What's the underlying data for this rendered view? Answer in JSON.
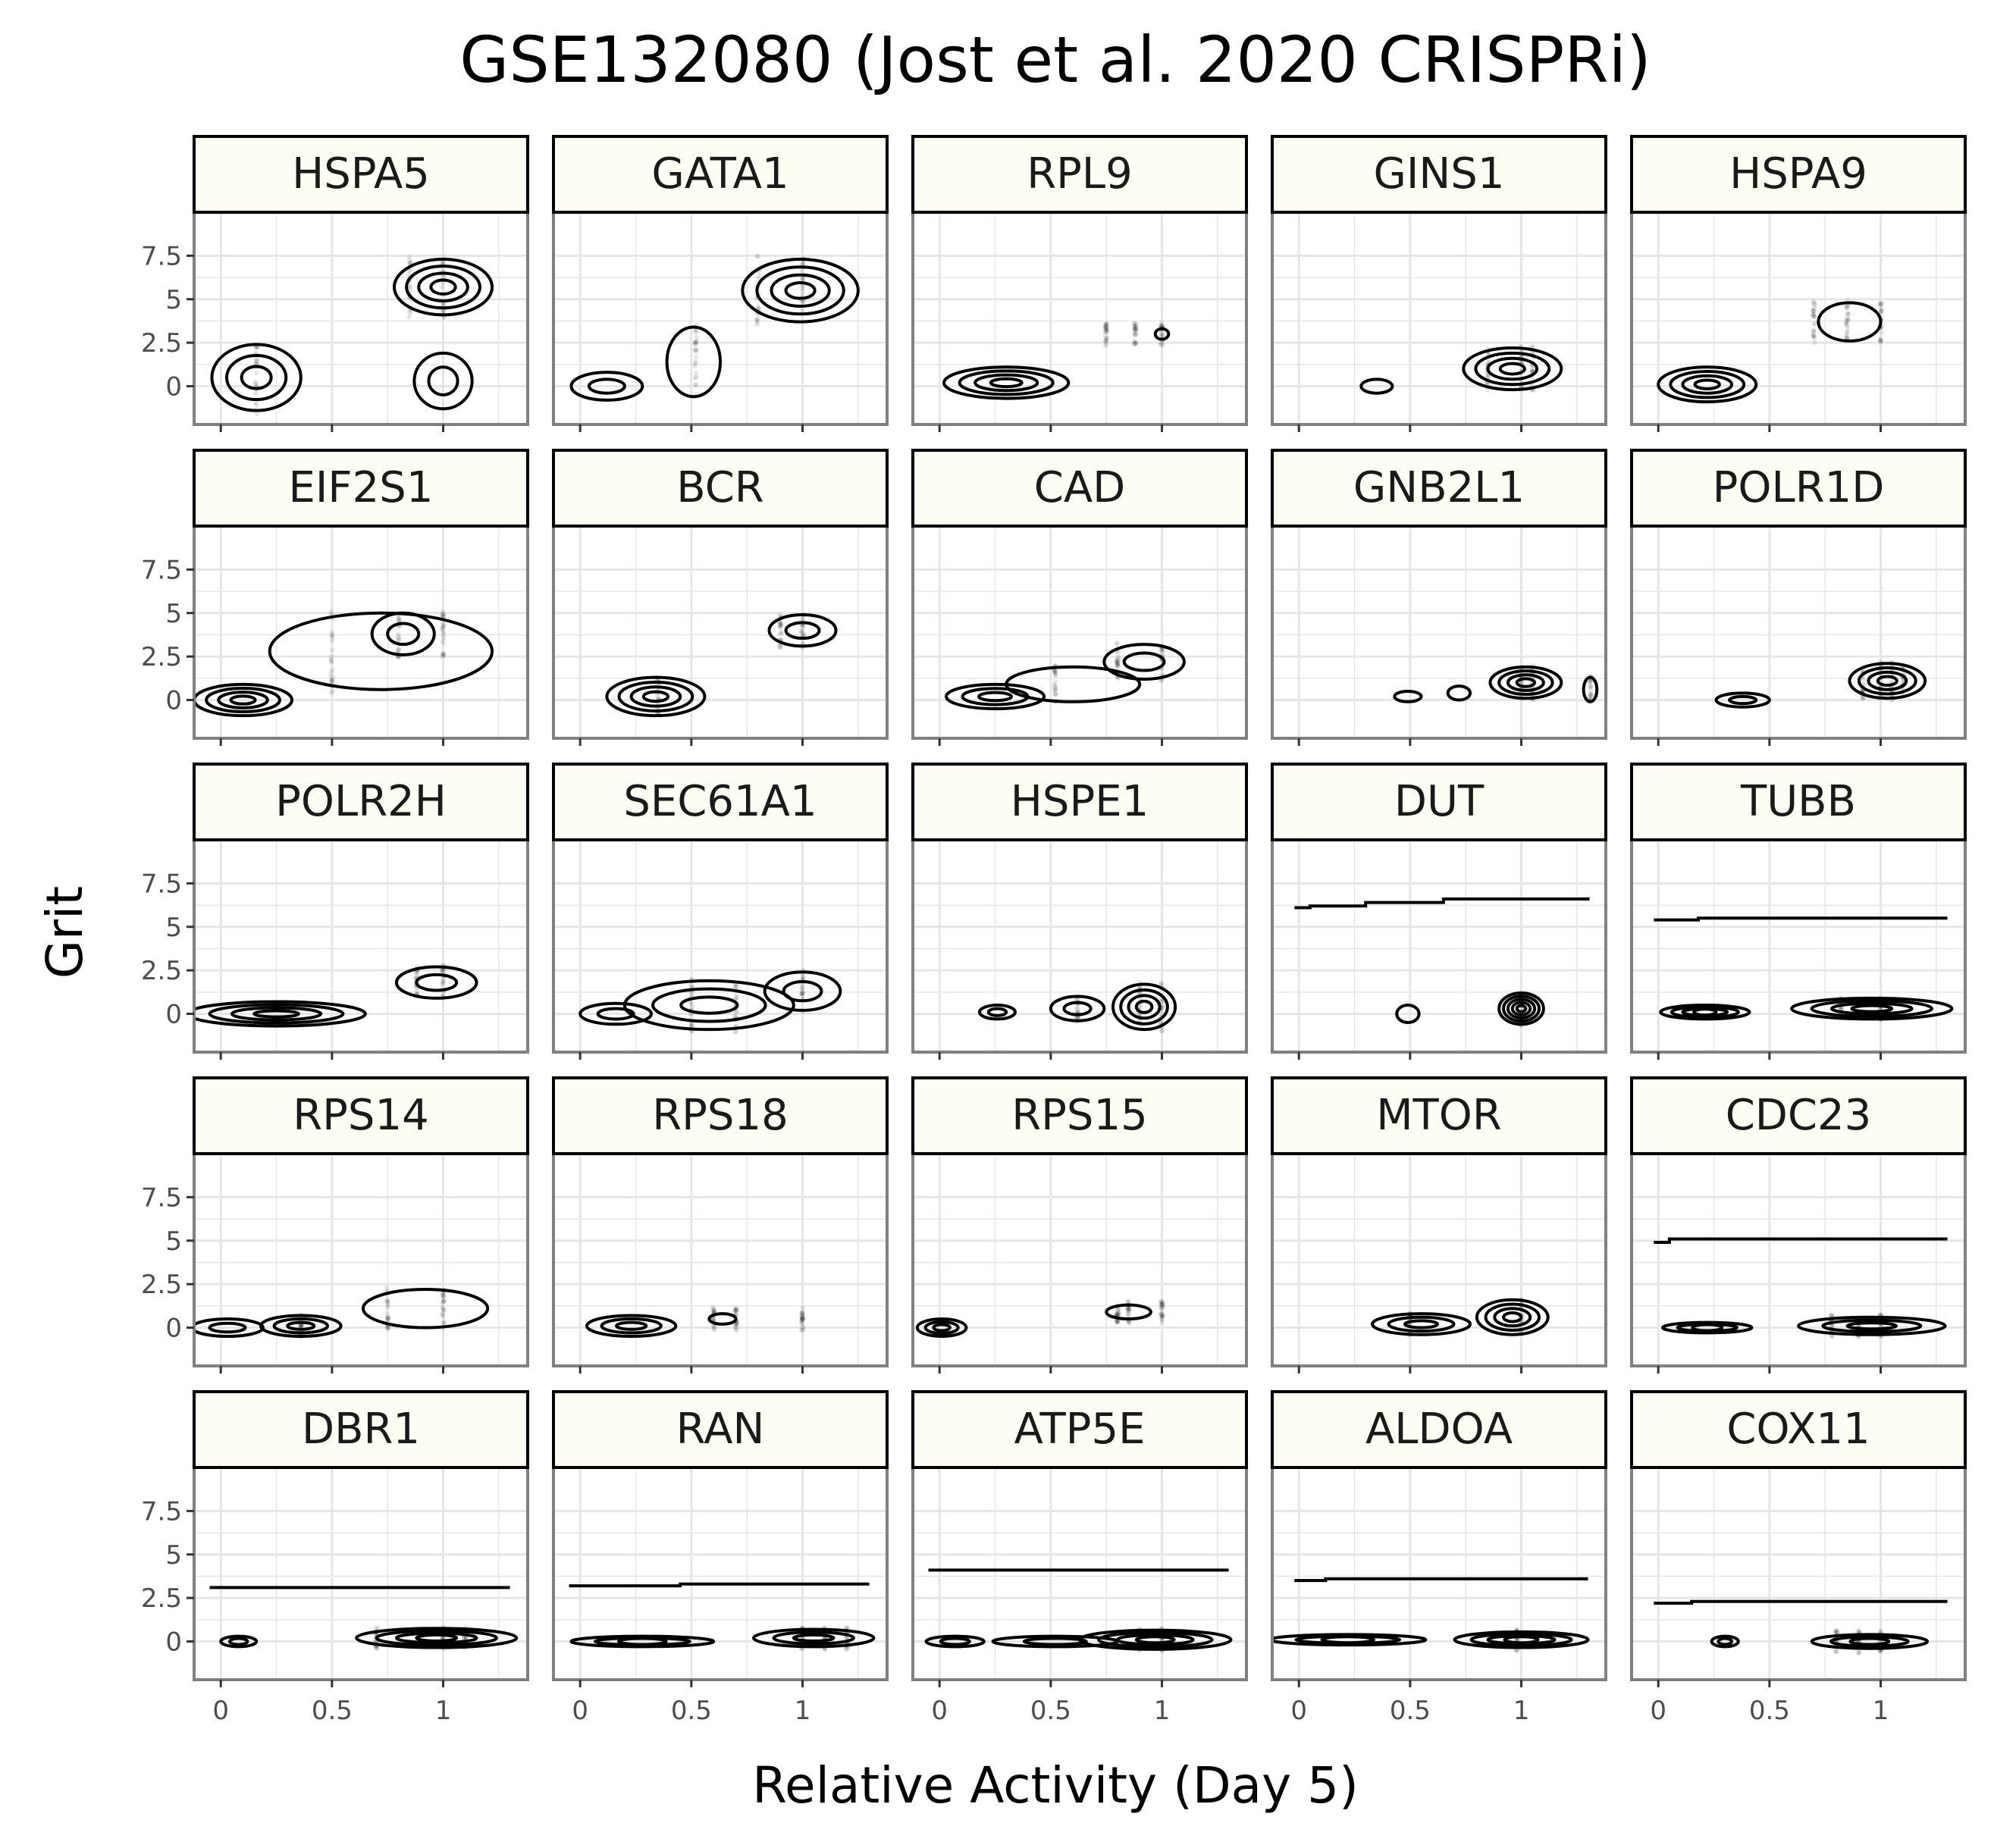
{
  "chart_data": {
    "type": "faceted-density-contour",
    "title": "GSE132080 (Jost et al. 2020 CRISPRi)",
    "xlabel": "Relative Activity (Day 5)",
    "ylabel": "Grit",
    "xlim": [
      -0.12,
      1.38
    ],
    "ylim": [
      -2.2,
      10
    ],
    "xticks": [
      0,
      0.5,
      1
    ],
    "xtick_labels": [
      "0",
      "0.5",
      "1"
    ],
    "yticks": [
      0,
      2.5,
      5,
      7.5
    ],
    "ytick_labels": [
      "0",
      "2.5",
      "5",
      "7.5"
    ],
    "grid": true,
    "legend": "none",
    "colors": {
      "strip_bg": "#fdfdf3",
      "panel_border": "#808080",
      "strip_border": "#000000",
      "grid": "#e6e6e6",
      "contour": "#000000",
      "points": "#000000"
    },
    "facets": [
      {
        "label": "HSPA5",
        "clusters": [
          [
            0.16,
            0.5,
            0.2,
            1.9,
            3
          ],
          [
            1.0,
            5.7,
            0.22,
            1.6,
            4
          ],
          [
            1.0,
            0.3,
            0.13,
            1.6,
            2
          ]
        ],
        "columns": [
          0.16,
          0.85,
          1.0
        ],
        "hline": null
      },
      {
        "label": "GATA1",
        "clusters": [
          [
            0.12,
            0.0,
            0.16,
            0.8,
            2
          ],
          [
            0.51,
            1.4,
            0.12,
            2.0,
            1
          ],
          [
            0.99,
            5.5,
            0.26,
            1.8,
            4
          ]
        ],
        "columns": [
          0.52,
          0.8,
          1.0
        ],
        "hline": null
      },
      {
        "label": "RPL9",
        "clusters": [
          [
            0.3,
            0.2,
            0.28,
            0.9,
            4
          ],
          [
            1.0,
            3.0,
            0.03,
            0.3,
            1
          ]
        ],
        "columns": [
          0.75,
          0.88,
          1.0
        ],
        "hline": null
      },
      {
        "label": "GINS1",
        "clusters": [
          [
            0.35,
            0.0,
            0.07,
            0.4,
            1
          ],
          [
            0.96,
            1.0,
            0.22,
            1.2,
            4
          ]
        ],
        "columns": [
          0.85,
          1.0,
          1.05
        ],
        "hline": null
      },
      {
        "label": "HSPA9",
        "clusters": [
          [
            0.22,
            0.1,
            0.22,
            1.0,
            4
          ],
          [
            0.86,
            3.7,
            0.14,
            1.1,
            1
          ]
        ],
        "columns": [
          0.7,
          0.85,
          1.0
        ],
        "hline": null
      },
      {
        "label": "EIF2S1",
        "clusters": [
          [
            0.1,
            0.0,
            0.22,
            0.9,
            4
          ],
          [
            0.82,
            3.8,
            0.14,
            1.2,
            2
          ],
          [
            0.72,
            2.8,
            0.5,
            2.2,
            1
          ]
        ],
        "columns": [
          0.5,
          0.8,
          1.0
        ],
        "hline": null
      },
      {
        "label": "BCR",
        "clusters": [
          [
            0.34,
            0.2,
            0.22,
            1.1,
            4
          ],
          [
            1.0,
            4.0,
            0.15,
            0.9,
            2
          ]
        ],
        "columns": [
          0.35,
          0.9,
          1.0
        ],
        "hline": null
      },
      {
        "label": "CAD",
        "clusters": [
          [
            0.25,
            0.2,
            0.22,
            0.7,
            3
          ],
          [
            0.6,
            0.9,
            0.3,
            1.0,
            1
          ],
          [
            0.92,
            2.2,
            0.18,
            1.0,
            2
          ]
        ],
        "columns": [
          0.52,
          0.8,
          1.0
        ],
        "hline": null
      },
      {
        "label": "GNB2L1",
        "clusters": [
          [
            0.49,
            0.2,
            0.06,
            0.3,
            1
          ],
          [
            0.72,
            0.4,
            0.05,
            0.4,
            1
          ],
          [
            1.02,
            1.0,
            0.16,
            0.9,
            4
          ],
          [
            1.31,
            0.6,
            0.03,
            0.7,
            1
          ]
        ],
        "columns": [
          1.0,
          1.05,
          1.31
        ],
        "hline": null
      },
      {
        "label": "POLR1D",
        "clusters": [
          [
            0.38,
            0.0,
            0.12,
            0.4,
            2
          ],
          [
            1.03,
            1.1,
            0.17,
            1.0,
            4
          ]
        ],
        "columns": [
          0.92,
          1.0,
          1.05,
          1.1
        ],
        "hline": null
      },
      {
        "label": "POLR2H",
        "clusters": [
          [
            0.25,
            0.0,
            0.4,
            0.7,
            4
          ],
          [
            0.97,
            1.8,
            0.18,
            0.9,
            2
          ]
        ],
        "columns": [
          0.88,
          1.0
        ],
        "hline": null
      },
      {
        "label": "SEC61A1",
        "clusters": [
          [
            0.16,
            0.0,
            0.16,
            0.6,
            2
          ],
          [
            0.58,
            0.5,
            0.38,
            1.4,
            3
          ],
          [
            1.0,
            1.3,
            0.17,
            1.1,
            2
          ]
        ],
        "columns": [
          0.5,
          0.7,
          1.0
        ],
        "hline": null
      },
      {
        "label": "HSPE1",
        "clusters": [
          [
            0.26,
            0.1,
            0.08,
            0.4,
            2
          ],
          [
            0.62,
            0.3,
            0.12,
            0.7,
            2
          ],
          [
            0.92,
            0.4,
            0.14,
            1.3,
            4
          ]
        ],
        "columns": [
          0.62,
          0.9,
          1.0
        ],
        "hline": null
      },
      {
        "label": "DUT",
        "clusters": [
          [
            0.49,
            0.0,
            0.05,
            0.5,
            1
          ],
          [
            1.0,
            0.3,
            0.1,
            0.9,
            5
          ]
        ],
        "columns": [
          1.0
        ],
        "hline": [
          [
            -0.02,
            6.1
          ],
          [
            0.05,
            6.2
          ],
          [
            0.3,
            6.4
          ],
          [
            0.65,
            6.6
          ],
          [
            1.3,
            6.7
          ]
        ]
      },
      {
        "label": "TUBB",
        "clusters": [
          [
            0.21,
            0.1,
            0.2,
            0.4,
            4
          ],
          [
            0.96,
            0.3,
            0.36,
            0.6,
            4
          ]
        ],
        "columns": [
          0.82,
          1.0
        ],
        "hline": [
          [
            -0.02,
            5.4
          ],
          [
            0.18,
            5.5
          ],
          [
            1.3,
            5.5
          ]
        ]
      },
      {
        "label": "RPS14",
        "clusters": [
          [
            0.03,
            0.0,
            0.16,
            0.5,
            2
          ],
          [
            0.36,
            0.1,
            0.18,
            0.6,
            3
          ],
          [
            0.92,
            1.1,
            0.28,
            1.1,
            1
          ]
        ],
        "columns": [
          0.36,
          0.75,
          1.0
        ],
        "hline": null
      },
      {
        "label": "RPS18",
        "clusters": [
          [
            0.23,
            0.1,
            0.2,
            0.6,
            3
          ],
          [
            0.64,
            0.5,
            0.06,
            0.3,
            1
          ]
        ],
        "columns": [
          0.6,
          0.7,
          1.0
        ],
        "hline": null
      },
      {
        "label": "RPS15",
        "clusters": [
          [
            0.01,
            0.0,
            0.11,
            0.5,
            3
          ],
          [
            0.85,
            0.9,
            0.1,
            0.4,
            1
          ]
        ],
        "columns": [
          0.8,
          0.85,
          1.0
        ],
        "hline": null
      },
      {
        "label": "MTOR",
        "clusters": [
          [
            0.55,
            0.2,
            0.22,
            0.6,
            3
          ],
          [
            0.96,
            0.6,
            0.16,
            1.0,
            4
          ]
        ],
        "columns": [
          0.5,
          1.0
        ],
        "hline": null
      },
      {
        "label": "CDC23",
        "clusters": [
          [
            0.22,
            0.0,
            0.2,
            0.3,
            3
          ],
          [
            0.96,
            0.1,
            0.33,
            0.5,
            3
          ]
        ],
        "columns": [
          0.78,
          0.9,
          1.0
        ],
        "hline": [
          [
            -0.02,
            4.9
          ],
          [
            0.05,
            5.1
          ],
          [
            1.3,
            5.1
          ]
        ]
      },
      {
        "label": "DBR1",
        "clusters": [
          [
            0.08,
            0.0,
            0.08,
            0.3,
            2
          ],
          [
            0.97,
            0.2,
            0.36,
            0.55,
            4
          ]
        ],
        "columns": [
          0.7,
          1.0,
          1.1
        ],
        "hline": [
          [
            -0.05,
            3.1
          ],
          [
            1.3,
            3.1
          ]
        ]
      },
      {
        "label": "RAN",
        "clusters": [
          [
            0.28,
            0.0,
            0.32,
            0.3,
            3
          ],
          [
            1.05,
            0.2,
            0.27,
            0.5,
            3
          ]
        ],
        "columns": [
          1.0,
          1.1,
          1.2
        ],
        "hline": [
          [
            -0.05,
            3.2
          ],
          [
            0.45,
            3.3
          ],
          [
            1.3,
            3.3
          ]
        ]
      },
      {
        "label": "ATP5E",
        "clusters": [
          [
            0.07,
            0.0,
            0.13,
            0.3,
            2
          ],
          [
            0.52,
            0.0,
            0.28,
            0.3,
            2
          ],
          [
            0.97,
            0.1,
            0.34,
            0.55,
            4
          ]
        ],
        "columns": [
          0.9,
          1.0
        ],
        "hline": [
          [
            -0.05,
            4.1
          ],
          [
            1.3,
            4.1
          ]
        ]
      },
      {
        "label": "ALDOA",
        "clusters": [
          [
            0.22,
            0.1,
            0.35,
            0.3,
            3
          ],
          [
            1.0,
            0.1,
            0.3,
            0.45,
            4
          ]
        ],
        "columns": [
          0.98
        ],
        "hline": [
          [
            -0.02,
            3.5
          ],
          [
            0.12,
            3.6
          ],
          [
            1.3,
            3.6
          ]
        ]
      },
      {
        "label": "COX11",
        "clusters": [
          [
            0.3,
            0.0,
            0.06,
            0.3,
            2
          ],
          [
            0.95,
            0.0,
            0.26,
            0.4,
            3
          ]
        ],
        "columns": [
          0.8,
          0.9,
          1.0
        ],
        "hline": [
          [
            -0.02,
            2.2
          ],
          [
            0.15,
            2.3
          ],
          [
            1.3,
            2.3
          ]
        ]
      }
    ]
  }
}
